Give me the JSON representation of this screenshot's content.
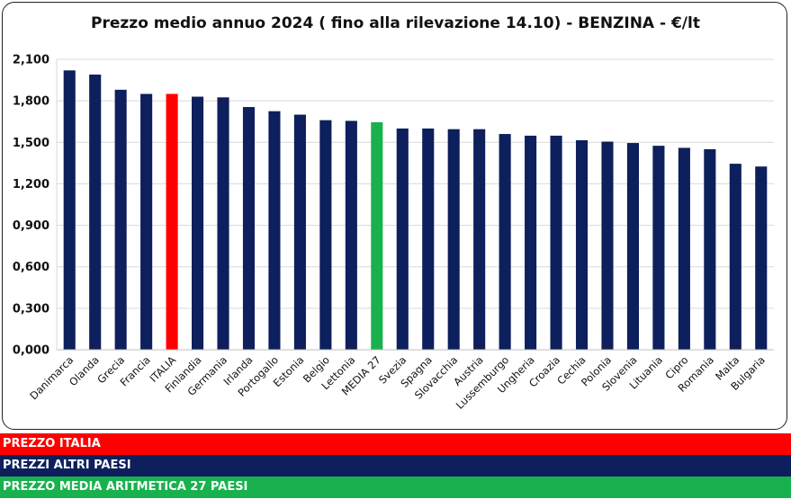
{
  "chart_data": {
    "type": "bar",
    "title": "Prezzo medio annuo 2024 ( fino alla rilevazione 14.10) - BENZINA - €/lt",
    "categories": [
      "Danimarca",
      "Olanda",
      "Grecia",
      "Francia",
      "ITALIA",
      "Finlandia",
      "Germania",
      "Irlanda",
      "Portogallo",
      "Estonia",
      "Belgio",
      "Lettonia",
      "MEDIA 27",
      "Svezia",
      "Spagna",
      "Slovacchia",
      "Austria",
      "Lussemburgo",
      "Ungheria",
      "Croazia",
      "Cechia",
      "Polonia",
      "Slovenia",
      "Lituania",
      "Cipro",
      "Romania",
      "Malta",
      "Bulgaria"
    ],
    "values": [
      2.02,
      1.99,
      1.88,
      1.85,
      1.85,
      1.83,
      1.825,
      1.755,
      1.725,
      1.7,
      1.66,
      1.655,
      1.645,
      1.6,
      1.6,
      1.595,
      1.595,
      1.56,
      1.548,
      1.548,
      1.515,
      1.505,
      1.495,
      1.475,
      1.46,
      1.45,
      1.345,
      1.325
    ],
    "bar_colors": [
      "#0d1f5c",
      "#0d1f5c",
      "#0d1f5c",
      "#0d1f5c",
      "#ff0000",
      "#0d1f5c",
      "#0d1f5c",
      "#0d1f5c",
      "#0d1f5c",
      "#0d1f5c",
      "#0d1f5c",
      "#0d1f5c",
      "#18b14e",
      "#0d1f5c",
      "#0d1f5c",
      "#0d1f5c",
      "#0d1f5c",
      "#0d1f5c",
      "#0d1f5c",
      "#0d1f5c",
      "#0d1f5c",
      "#0d1f5c",
      "#0d1f5c",
      "#0d1f5c",
      "#0d1f5c",
      "#0d1f5c",
      "#0d1f5c",
      "#0d1f5c"
    ],
    "y_ticks": [
      0,
      0.3,
      0.6,
      0.9,
      1.2,
      1.5,
      1.8,
      2.1
    ],
    "y_tick_labels": [
      "0,000",
      "0,300",
      "0,600",
      "0,900",
      "1,200",
      "1,500",
      "1,800",
      "2,100"
    ],
    "ylim": [
      0,
      2.1
    ],
    "grid": true,
    "xlabel": "",
    "ylabel": ""
  },
  "legend": {
    "italia": "PREZZO ITALIA",
    "altri": "PREZZI ALTRI PAESI",
    "media": "PREZZO MEDIA ARITMETICA 27 PAESI"
  },
  "colors": {
    "italia": "#ff0000",
    "altri": "#0d1f5c",
    "media": "#18b14e",
    "grid": "#d9d9d9"
  }
}
